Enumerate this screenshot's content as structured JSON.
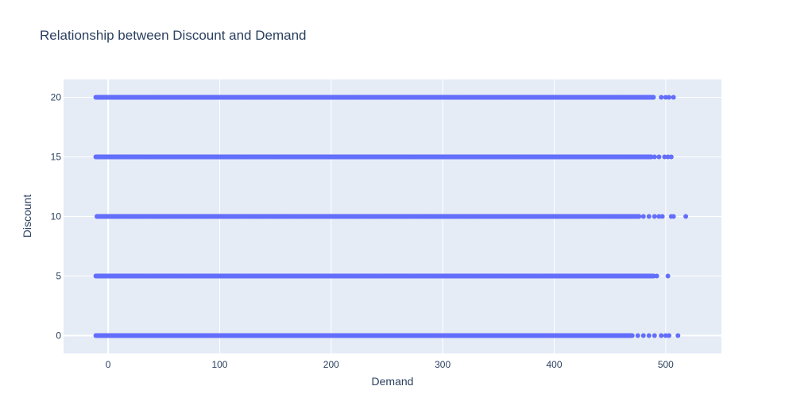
{
  "chart_data": {
    "type": "scatter",
    "title": "Relationship between Discount and Demand",
    "xlabel": "Demand",
    "ylabel": "Discount",
    "xlim": [
      -40,
      550
    ],
    "ylim": [
      -1.5,
      21.5
    ],
    "x_ticks": [
      0,
      100,
      200,
      300,
      400,
      500
    ],
    "y_ticks": [
      0,
      5,
      10,
      15,
      20
    ],
    "grid": true,
    "colors": {
      "marker": "#636efa",
      "plot_bg": "#e5ecf6",
      "grid": "#ffffff",
      "text": "#2a3f5f"
    },
    "series": [
      {
        "discount_levels": [
          {
            "y": 0,
            "dense_range": [
              -11,
              470
            ],
            "outliers": [
              475,
              480,
              485,
              490,
              496,
              500,
              503,
              511
            ]
          },
          {
            "y": 5,
            "dense_range": [
              -11,
              489
            ],
            "outliers": [
              492,
              502
            ]
          },
          {
            "y": 10,
            "dense_range": [
              -10,
              476
            ],
            "outliers": [
              480,
              485,
              490,
              494,
              497,
              505,
              507,
              518
            ]
          },
          {
            "y": 15,
            "dense_range": [
              -11,
              487
            ],
            "outliers": [
              490,
              494,
              499,
              502,
              505
            ]
          },
          {
            "y": 20,
            "dense_range": [
              -11,
              489
            ],
            "outliers": [
              496,
              500,
              503,
              507
            ]
          }
        ]
      }
    ]
  }
}
